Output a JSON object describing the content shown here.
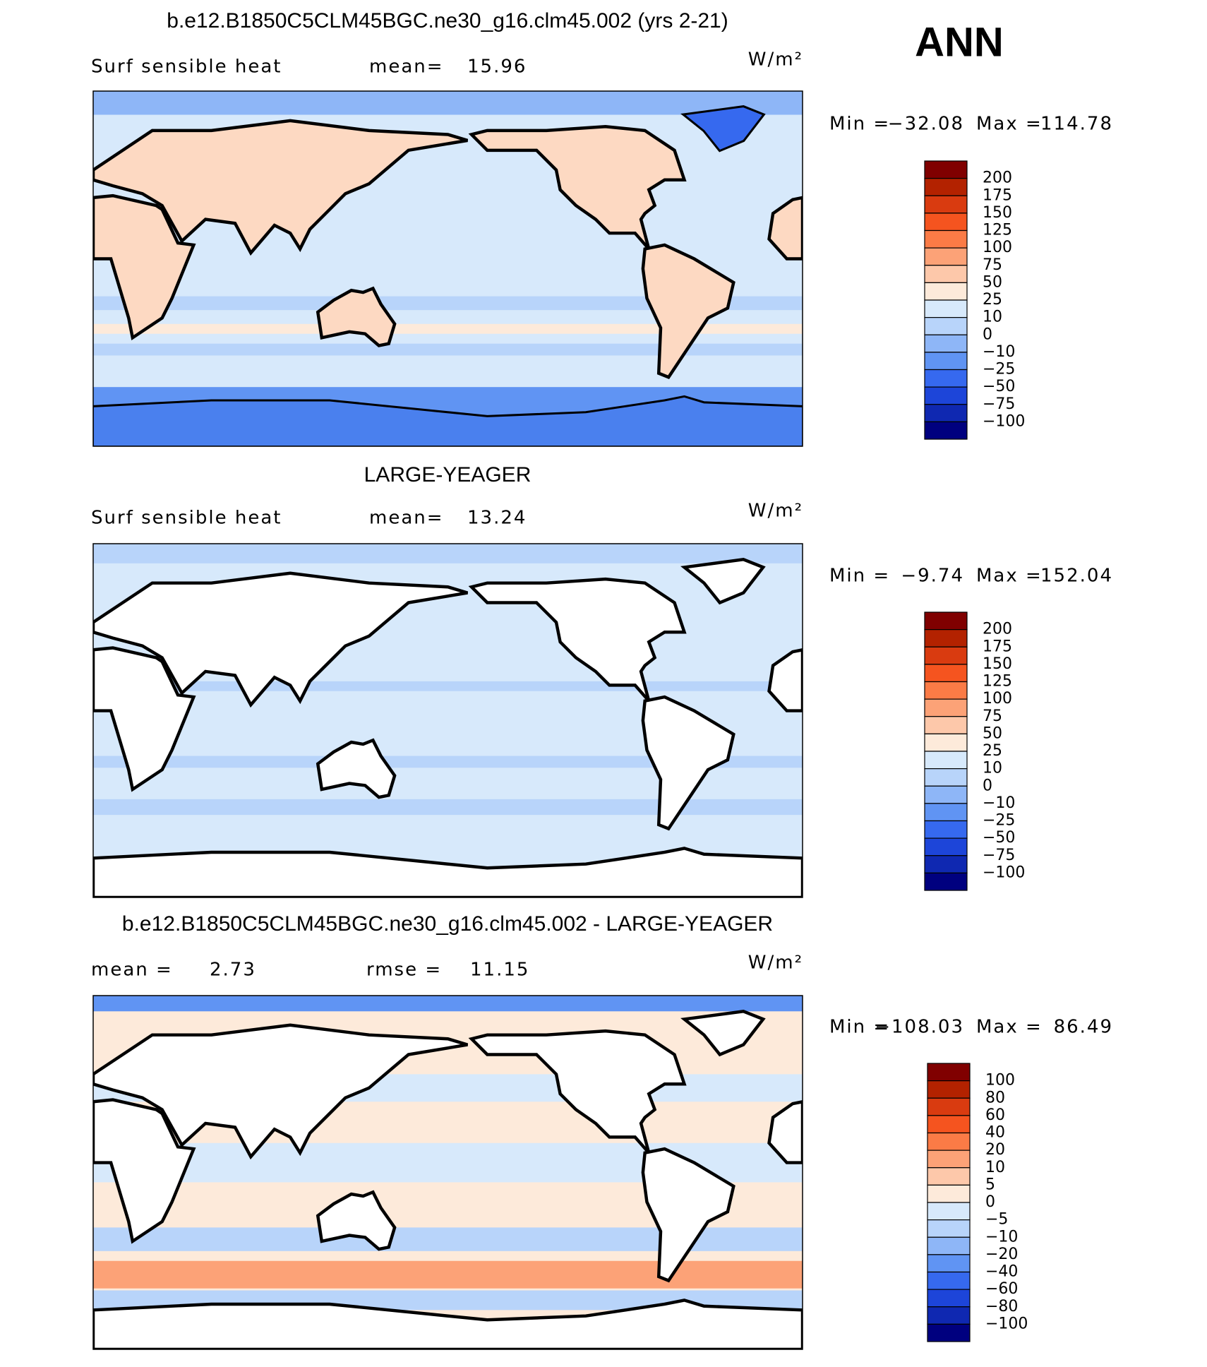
{
  "header": {
    "season": "ANN"
  },
  "panels": [
    {
      "title": "b.e12.B1850C5CLM45BGC.ne30_g16.clm45.002 (yrs 2-21)",
      "field": "Surf sensible heat",
      "stats": [
        {
          "label": "mean=",
          "value": "15.96"
        }
      ],
      "units": "W/m²",
      "min_label": "Min =",
      "min": "−32.08",
      "max_label": "Max =",
      "max": "114.78",
      "colorbar": {
        "levels": [
          "200",
          "175",
          "150",
          "125",
          "100",
          "75",
          "50",
          "25",
          "10",
          "0",
          "−10",
          "−25",
          "−50",
          "−75",
          "−100"
        ],
        "colors": [
          "#800000",
          "#b32200",
          "#d93b10",
          "#f5541f",
          "#fb7b46",
          "#fca277",
          "#fdc8aa",
          "#fdeada",
          "#d7e9fb",
          "#b8d4fa",
          "#8eb6f7",
          "#6094f3",
          "#3669ef",
          "#1d45d9",
          "#0f28b1",
          "#00007f"
        ]
      }
    },
    {
      "title": "LARGE-YEAGER",
      "field": "Surf sensible heat",
      "stats": [
        {
          "label": "mean=",
          "value": "13.24"
        }
      ],
      "units": "W/m²",
      "min_label": "Min =",
      "min": "−9.74",
      "max_label": "Max =",
      "max": "152.04",
      "colorbar": {
        "levels": [
          "200",
          "175",
          "150",
          "125",
          "100",
          "75",
          "50",
          "25",
          "10",
          "0",
          "−10",
          "−25",
          "−50",
          "−75",
          "−100"
        ],
        "colors": [
          "#800000",
          "#b32200",
          "#d93b10",
          "#f5541f",
          "#fb7b46",
          "#fca277",
          "#fdc8aa",
          "#fdeada",
          "#d7e9fb",
          "#b8d4fa",
          "#8eb6f7",
          "#6094f3",
          "#3669ef",
          "#1d45d9",
          "#0f28b1",
          "#00007f"
        ]
      }
    },
    {
      "title": "b.e12.B1850C5CLM45BGC.ne30_g16.clm45.002 - LARGE-YEAGER",
      "stats": [
        {
          "label": "mean =",
          "value": "2.73"
        },
        {
          "label": "rmse =",
          "value": "11.15"
        }
      ],
      "units": "W/m²",
      "min_label": "Min =",
      "min": "−108.03",
      "max_label": "Max =",
      "max": "86.49",
      "colorbar": {
        "levels": [
          "100",
          "80",
          "60",
          "40",
          "20",
          "10",
          "5",
          "0",
          "−5",
          "−10",
          "−20",
          "−40",
          "−60",
          "−80",
          "−100"
        ],
        "colors": [
          "#800000",
          "#b32200",
          "#d93b10",
          "#f5541f",
          "#fb7b46",
          "#fca277",
          "#fdc8aa",
          "#fdeada",
          "#d7e9fb",
          "#b8d4fa",
          "#8eb6f7",
          "#6094f3",
          "#3669ef",
          "#1d45d9",
          "#0f28b1",
          "#00007f"
        ]
      }
    }
  ]
}
